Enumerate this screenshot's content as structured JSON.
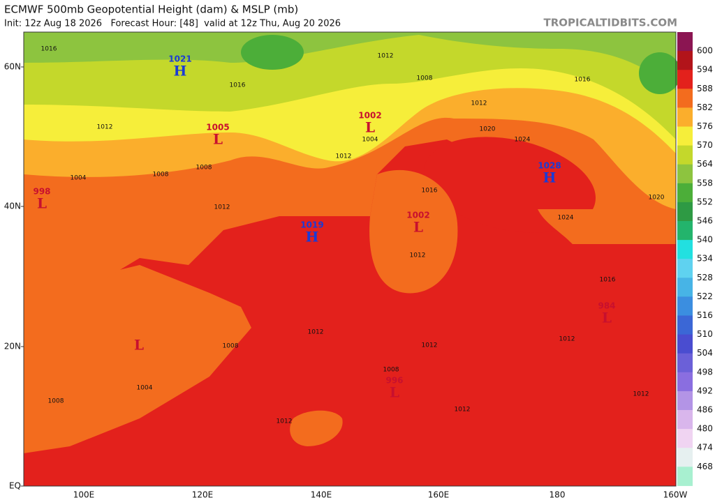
{
  "header": {
    "title": "ECMWF 500mb Geopotential Height (dam) & MSLP (mb)",
    "subtitle": "Init: 12z Aug 18 2026   Forecast Hour: [48]  valid at 12z Thu, Aug 20 2026",
    "site": "TROPICALTIDBITS.COM"
  },
  "map": {
    "lat_labels": [
      "60N",
      "40N",
      "20N",
      "EQ"
    ],
    "lon_labels": [
      "100E",
      "120E",
      "140E",
      "160E",
      "180",
      "160W"
    ],
    "centers": [
      {
        "type": "H",
        "value": 1021
      },
      {
        "type": "L",
        "value": 1005
      },
      {
        "type": "L",
        "value": 1002
      },
      {
        "type": "H",
        "value": 1028
      },
      {
        "type": "L",
        "value": 998
      },
      {
        "type": "H",
        "value": 1019
      },
      {
        "type": "L",
        "value": 1002
      },
      {
        "type": "L",
        "value": 984
      },
      {
        "type": "L"
      },
      {
        "type": "L",
        "value": 996
      }
    ],
    "isobar_labels": [
      1016,
      1012,
      1008,
      1016,
      1012,
      1020,
      1024,
      1016,
      1024,
      1020,
      1012,
      1016,
      1012,
      1012,
      1012,
      1008,
      1012,
      1012,
      1012,
      1008,
      1004,
      1008,
      1004,
      1012,
      1008,
      1012,
      1004,
      1008,
      1016,
      1012
    ]
  },
  "colorbar": {
    "labels": [
      600,
      594,
      588,
      582,
      576,
      570,
      564,
      558,
      552,
      546,
      540,
      534,
      528,
      522,
      516,
      510,
      504,
      498,
      492,
      486,
      480,
      474,
      468
    ],
    "colors": [
      "#8b1552",
      "#b2141a",
      "#e3211c",
      "#f36c1e",
      "#fbae2c",
      "#f6ee3a",
      "#c4d82b",
      "#8dc43f",
      "#4cae39",
      "#2e9a44",
      "#23b46c",
      "#22e0e0",
      "#5fd2f0",
      "#47b4e6",
      "#3b8ee0",
      "#3b67d6",
      "#4a4dd0",
      "#6b60d8",
      "#8a6ee0",
      "#b394e6",
      "#d9b6ec",
      "#f0d4f2",
      "#e6f0f0",
      "#a8f0d0"
    ]
  }
}
